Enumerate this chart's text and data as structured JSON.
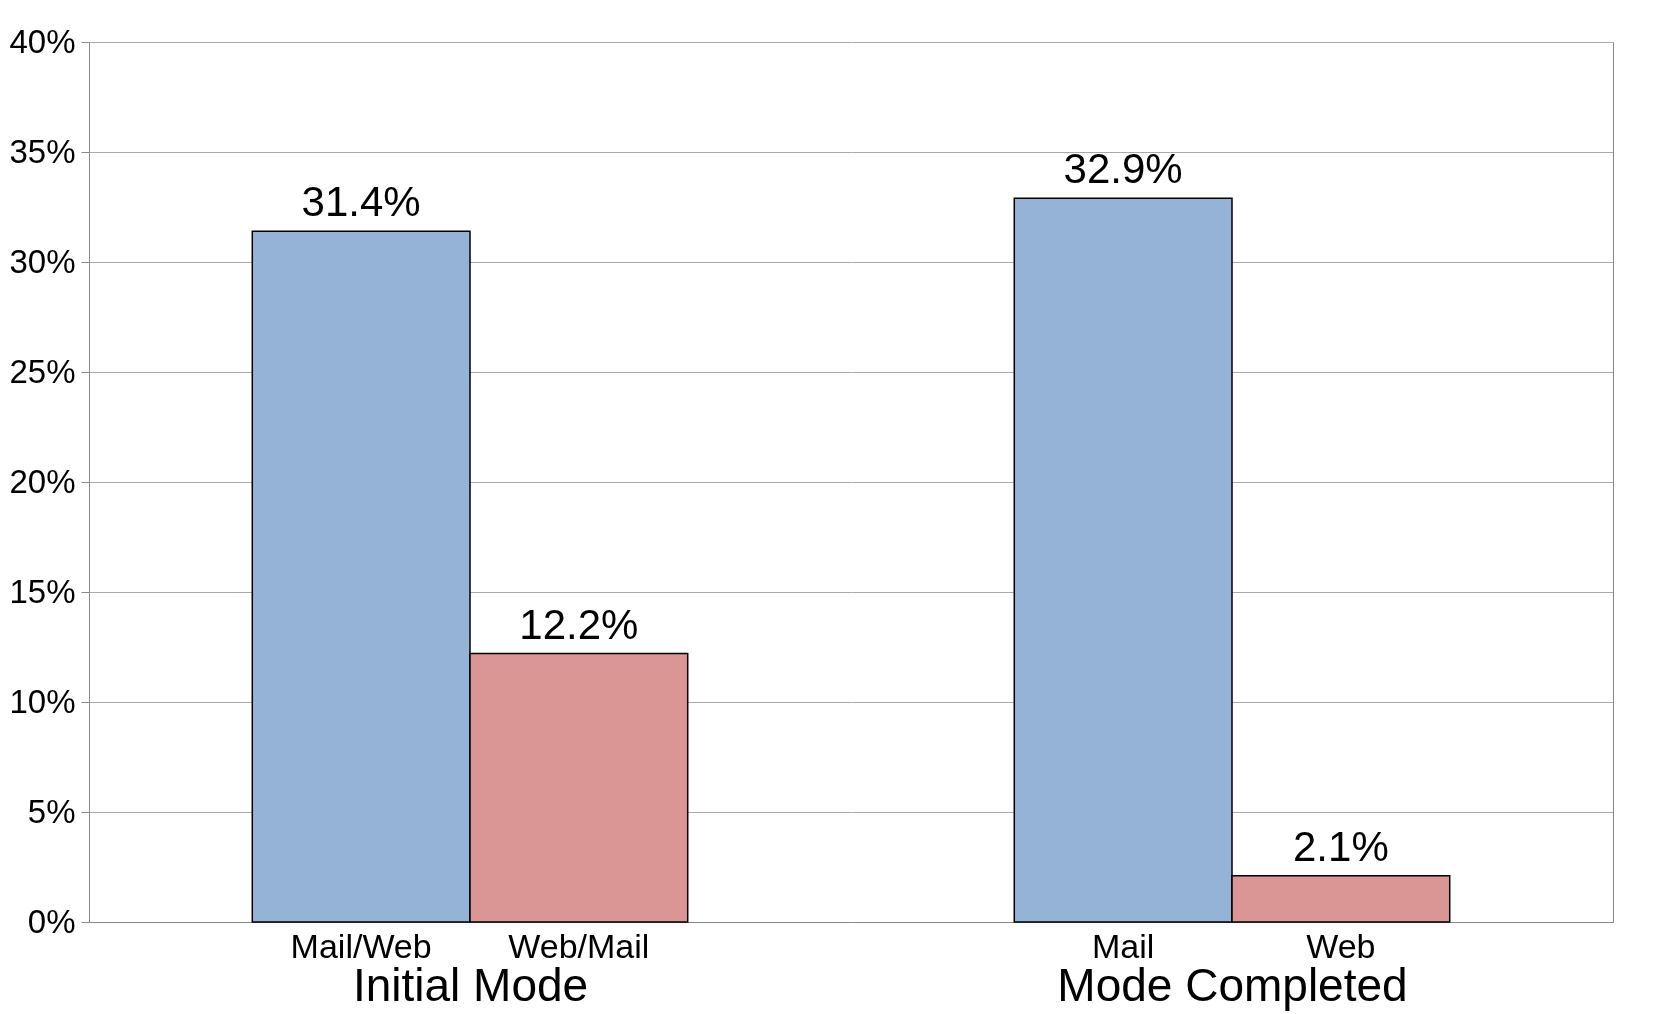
{
  "chart_data": [
    {
      "type": "bar",
      "xlabel": "Initial Mode",
      "categories": [
        "Mail/Web",
        "Web/Mail"
      ],
      "values": [
        31.4,
        12.2
      ],
      "colors": [
        "#95b3d7",
        "#d99694"
      ],
      "value_labels": [
        "31.4%",
        "12.2%"
      ],
      "ylim": [
        0,
        40
      ],
      "yticks": [
        {
          "value": 0,
          "label": "0%"
        },
        {
          "value": 5,
          "label": "5%"
        },
        {
          "value": 10,
          "label": "10%"
        },
        {
          "value": 15,
          "label": "15%"
        },
        {
          "value": 20,
          "label": "20%"
        },
        {
          "value": 25,
          "label": "25%"
        },
        {
          "value": 30,
          "label": "30%"
        },
        {
          "value": 35,
          "label": "35%"
        },
        {
          "value": 40,
          "label": "40%"
        }
      ],
      "grid": "y"
    },
    {
      "type": "bar",
      "xlabel": "Mode Completed",
      "categories": [
        "Mail",
        "Web"
      ],
      "values": [
        32.9,
        2.1
      ],
      "colors": [
        "#95b3d7",
        "#d99694"
      ],
      "value_labels": [
        "32.9%",
        "2.1%"
      ],
      "ylim": [
        0,
        40
      ],
      "yticks": [
        0,
        5,
        10,
        15,
        20,
        25,
        30,
        35,
        40
      ],
      "grid": "y",
      "tick_labels": "x"
    }
  ]
}
